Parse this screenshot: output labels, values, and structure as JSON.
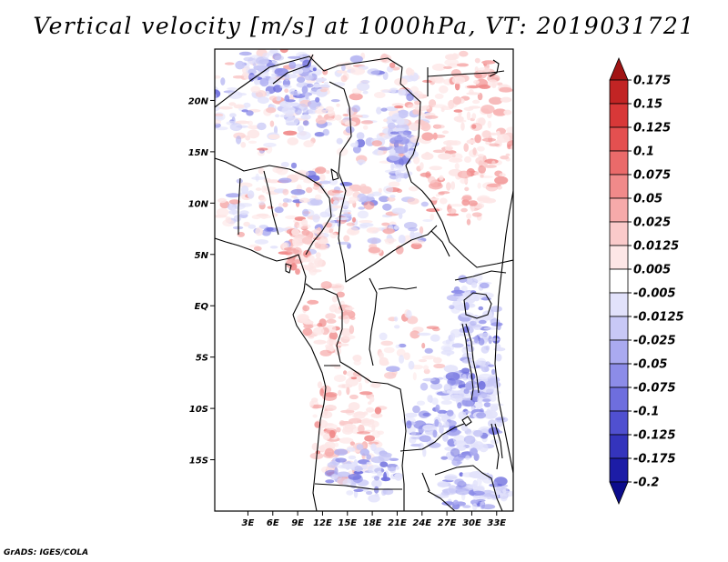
{
  "title": "Vertical velocity [m/s] at 1000hPa, VT: 2019031721",
  "footer": "GrADS: IGES/COLA",
  "map": {
    "lon_range": [
      -1,
      35
    ],
    "lat_range": [
      -20,
      25
    ],
    "lat_labels": [
      {
        "text": "20N",
        "value": 20
      },
      {
        "text": "15N",
        "value": 15
      },
      {
        "text": "10N",
        "value": 10
      },
      {
        "text": "5N",
        "value": 5
      },
      {
        "text": "EQ",
        "value": 0
      },
      {
        "text": "5S",
        "value": -5
      },
      {
        "text": "10S",
        "value": -10
      },
      {
        "text": "15S",
        "value": -15
      }
    ],
    "lon_labels": [
      {
        "text": "3E",
        "value": 3
      },
      {
        "text": "6E",
        "value": 6
      },
      {
        "text": "9E",
        "value": 9
      },
      {
        "text": "12E",
        "value": 12
      },
      {
        "text": "15E",
        "value": 15
      },
      {
        "text": "18E",
        "value": 18
      },
      {
        "text": "21E",
        "value": 21
      },
      {
        "text": "24E",
        "value": 24
      },
      {
        "text": "27E",
        "value": 27
      },
      {
        "text": "30E",
        "value": 30
      },
      {
        "text": "33E",
        "value": 33
      }
    ]
  },
  "colorbar": {
    "levels": [
      "0.175",
      "0.15",
      "0.125",
      "0.1",
      "0.075",
      "0.05",
      "0.025",
      "0.0125",
      "0.005",
      "-0.005",
      "-0.0125",
      "-0.025",
      "-0.05",
      "-0.075",
      "-0.1",
      "-0.125",
      "-0.175",
      "-0.2"
    ],
    "colors": [
      "#a11414",
      "#c22424",
      "#d83838",
      "#e45050",
      "#ea6a6a",
      "#f08a8a",
      "#f6aaaa",
      "#facaca",
      "#fde6e6",
      "#ffffff",
      "#e2e2fb",
      "#c8c8f6",
      "#aaaaf0",
      "#8c8ce8",
      "#6e6ede",
      "#5050d0",
      "#3434bc",
      "#1c1ca6",
      "#0c0c8c"
    ]
  }
}
